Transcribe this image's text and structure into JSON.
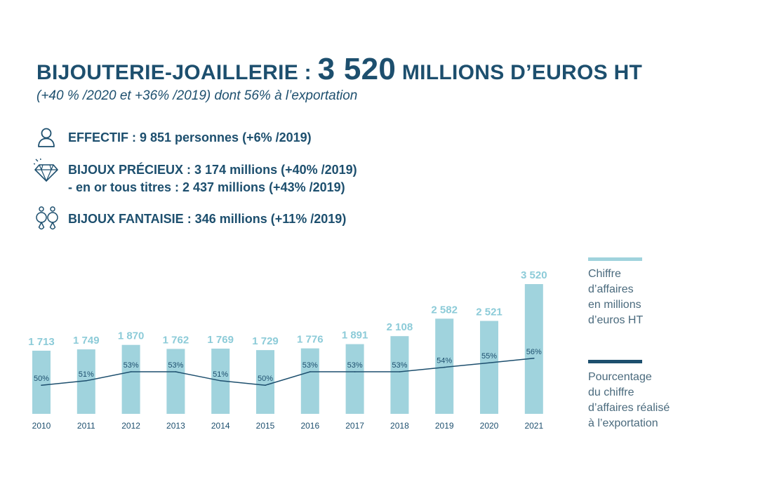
{
  "header": {
    "title_prefix": "BIJOUTERIE-JOAILLERIE : ",
    "title_number": "3 520",
    "title_suffix": " MILLIONS D’EUROS HT",
    "subtitle": "(+40 % /2020 et +36% /2019) dont 56% à l’exportation"
  },
  "stats": {
    "effectif": "EFFECTIF : 9 851 personnes (+6% /2019)",
    "precieux": "BIJOUX PRÉCIEUX : 3 174 millions (+40% /2019)",
    "precieux_sub": "-  en or tous titres : 2 437 millions (+43% /2019)",
    "fantaisie": "BIJOUX FANTAISIE : 346 millions (+11% /2019)"
  },
  "icons": {
    "effectif": "person-icon",
    "precieux": "diamond-icon",
    "fantaisie": "earrings-icon"
  },
  "colors": {
    "title": "#1d4f6e",
    "bar": "#a0d3dd",
    "bar_label": "#8ccbd8",
    "line": "#1d4f6e",
    "legend_text": "#4a6a7d"
  },
  "legend": {
    "revenue_lines": [
      "Chiffre",
      "d’affaires",
      "en millions",
      "d’euros HT"
    ],
    "export_lines": [
      "Pourcentage",
      "du chiffre",
      "d’affaires réalisé",
      "à l’exportation"
    ]
  },
  "chart_data": {
    "type": "bar",
    "categories": [
      "2010",
      "2011",
      "2012",
      "2013",
      "2014",
      "2015",
      "2016",
      "2017",
      "2018",
      "2019",
      "2020",
      "2021"
    ],
    "series": [
      {
        "name": "Chiffre d’affaires en millions d’euros HT",
        "type": "bar",
        "values": [
          1713,
          1749,
          1870,
          1762,
          1769,
          1729,
          1776,
          1891,
          2108,
          2582,
          2521,
          3520
        ],
        "labels": [
          "1 713",
          "1 749",
          "1 870",
          "1 762",
          "1 769",
          "1 729",
          "1 776",
          "1 891",
          "2 108",
          "2 582",
          "2 521",
          "3 520"
        ]
      },
      {
        "name": "Pourcentage du chiffre d’affaires réalisé à l’exportation",
        "type": "line",
        "values": [
          50,
          51,
          53,
          53,
          51,
          50,
          53,
          53,
          53,
          54,
          55,
          56
        ],
        "labels": [
          "50%",
          "51%",
          "53%",
          "53%",
          "51%",
          "50%",
          "53%",
          "53%",
          "53%",
          "54%",
          "55%",
          "56%"
        ]
      }
    ],
    "legend_position": "right",
    "grid": false
  }
}
